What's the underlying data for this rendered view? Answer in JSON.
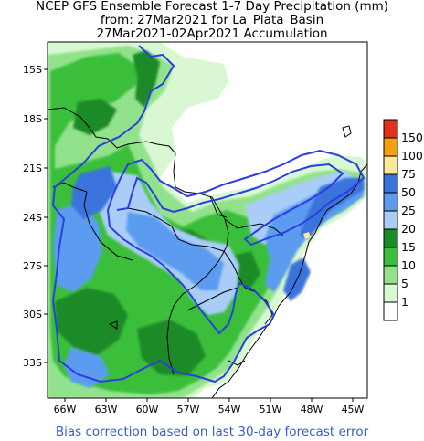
{
  "title": {
    "line1": "NCEP GFS Ensemble Forecast 1-7 Day Precipitation (mm)",
    "line2": "from: 27Mar2021   for La_Plata_Basin",
    "line3": "27Mar2021-02Apr2021 Accumulation"
  },
  "axes": {
    "y_ticks": [
      "15S",
      "18S",
      "21S",
      "24S",
      "27S",
      "30S",
      "33S"
    ],
    "x_ticks": [
      "66W",
      "63W",
      "60W",
      "57W",
      "54W",
      "51W",
      "48W",
      "45W"
    ]
  },
  "legend": {
    "bins": [
      {
        "label": "150",
        "color": "#e0311e"
      },
      {
        "label": "100",
        "color": "#f5a00f"
      },
      {
        "label": "75",
        "color": "#fde89a"
      },
      {
        "label": "50",
        "color": "#3a73dc"
      },
      {
        "label": "25",
        "color": "#5b9cf0"
      },
      {
        "label": "20",
        "color": "#a9cdf7"
      },
      {
        "label": "15",
        "color": "#1c8a28"
      },
      {
        "label": "10",
        "color": "#3bbf3b"
      },
      {
        "label": "5",
        "color": "#92e28c"
      },
      {
        "label": "1",
        "color": "#d9f7d3"
      },
      {
        "label": "",
        "color": "#ffffff"
      }
    ]
  },
  "footer": "Bias correction based on last 30-day forecast error",
  "colors": {
    "basin_outline": "#2a3fe0",
    "borders": "#000000"
  }
}
